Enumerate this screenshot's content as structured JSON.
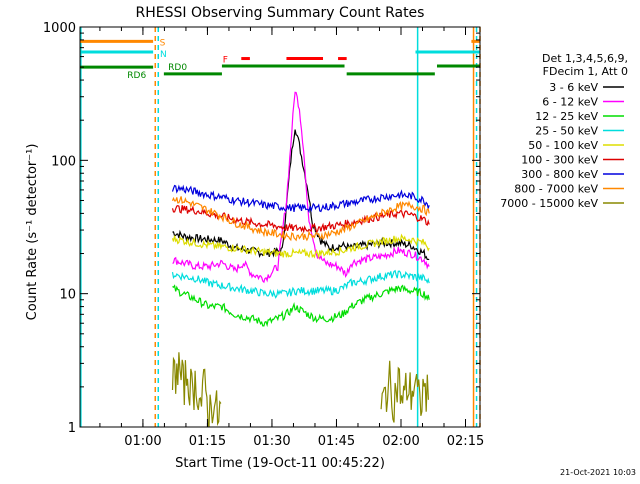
{
  "chart_data": {
    "type": "line",
    "title": "RHESSI Observing Summary Count Rates",
    "ylabel": "Count Rate (s⁻¹ detector⁻¹)",
    "xlabel": "Start Time (19-Oct-11 00:45:22)",
    "yscale": "log",
    "ylim": [
      1,
      1000
    ],
    "xlim_minutes": [
      0,
      93
    ],
    "yticks": [
      {
        "v": 1,
        "label": "1"
      },
      {
        "v": 10,
        "label": "10"
      },
      {
        "v": 100,
        "label": "100"
      },
      {
        "v": 1000,
        "label": "1000"
      }
    ],
    "xticks": [
      {
        "m": 14.63,
        "label": "01:00"
      },
      {
        "m": 29.63,
        "label": "01:15"
      },
      {
        "m": 44.63,
        "label": "01:30"
      },
      {
        "m": 59.63,
        "label": "01:45"
      },
      {
        "m": 74.63,
        "label": "02:00"
      },
      {
        "m": 89.63,
        "label": "02:15"
      }
    ],
    "legend": {
      "header": [
        "Det 1,3,4,5,6,9,",
        "FDecim 1, Att 0"
      ],
      "entries": [
        {
          "label": "3 - 6 keV",
          "color": "#000000"
        },
        {
          "label": "6 - 12 keV",
          "color": "#ff00ff"
        },
        {
          "label": "12 - 25 keV",
          "color": "#00dd00"
        },
        {
          "label": "25 - 50 keV",
          "color": "#00dddd"
        },
        {
          "label": "50 - 100 keV",
          "color": "#dddd00"
        },
        {
          "label": "100 - 300 keV",
          "color": "#dd0000"
        },
        {
          "label": "300 - 800 keV",
          "color": "#0000dd"
        },
        {
          "label": "800 - 7000 keV",
          "color": "#ff8800"
        },
        {
          "label": "7000 - 15000 keV",
          "color": "#888800"
        }
      ]
    },
    "flags": [
      {
        "label": "S",
        "color": "#ff8800",
        "level": 780,
        "segments": [
          [
            0,
            17
          ],
          [
            91,
            93
          ]
        ]
      },
      {
        "label": "N",
        "color": "#00dddd",
        "level": 650,
        "segments": [
          [
            0,
            17
          ],
          [
            78,
            93
          ]
        ]
      },
      {
        "label": "F",
        "color": "#ff0000",
        "level": 580,
        "segments": [
          [
            37.5,
            39.5
          ],
          [
            48,
            56.5
          ],
          [
            60,
            62
          ]
        ]
      },
      {
        "label": "RD0",
        "color": "#008800",
        "level": 510,
        "segments": [
          [
            33,
            61.5
          ],
          [
            83,
            93
          ]
        ]
      },
      {
        "label": "RD6",
        "color": "#008800",
        "level": 500,
        "segments": [
          [
            0,
            17
          ]
        ]
      },
      {
        "label": "",
        "color": "#008800",
        "level": 445,
        "segments": [
          [
            19.5,
            33
          ],
          [
            62,
            82.5
          ]
        ]
      }
    ],
    "event_lines": [
      {
        "m": 17.5,
        "color": "#ff8800",
        "dash": true
      },
      {
        "m": 18.2,
        "color": "#00dddd",
        "dash": true
      },
      {
        "m": 0.2,
        "color": "#00dddd",
        "dash": false
      },
      {
        "m": 78.5,
        "color": "#00dddd",
        "dash": false
      },
      {
        "m": 91.5,
        "color": "#ff8800",
        "dash": false
      },
      {
        "m": 92.2,
        "color": "#00dddd",
        "dash": true
      },
      {
        "m": 93,
        "color": "#ff8800",
        "dash": true
      }
    ],
    "series": [
      {
        "name": "3 - 6 keV",
        "color": "#000000",
        "points": [
          [
            21.5,
            29
          ],
          [
            24,
            27
          ],
          [
            27,
            26
          ],
          [
            33,
            25
          ],
          [
            36,
            22
          ],
          [
            40,
            21
          ],
          [
            43,
            20
          ],
          [
            47,
            21
          ],
          [
            49,
            100
          ],
          [
            50,
            180
          ],
          [
            51,
            130
          ],
          [
            53,
            60
          ],
          [
            54,
            35
          ],
          [
            56,
            25
          ],
          [
            58,
            22
          ],
          [
            61,
            23
          ],
          [
            63,
            22
          ],
          [
            66,
            23
          ],
          [
            70,
            24
          ],
          [
            74,
            24
          ],
          [
            77,
            23
          ],
          [
            80,
            20
          ],
          [
            81.2,
            18
          ]
        ]
      },
      {
        "name": "6 - 12 keV",
        "color": "#ff00ff",
        "points": [
          [
            21.5,
            18
          ],
          [
            24,
            17
          ],
          [
            27,
            16
          ],
          [
            30,
            16
          ],
          [
            33,
            17
          ],
          [
            36,
            15
          ],
          [
            38,
            17
          ],
          [
            40,
            14
          ],
          [
            43,
            13
          ],
          [
            46,
            16
          ],
          [
            48,
            50
          ],
          [
            50,
            340
          ],
          [
            51,
            250
          ],
          [
            52,
            120
          ],
          [
            53,
            40
          ],
          [
            55,
            20
          ],
          [
            57,
            17
          ],
          [
            60,
            16
          ],
          [
            62,
            14
          ],
          [
            63,
            17
          ],
          [
            66,
            18
          ],
          [
            70,
            19
          ],
          [
            74,
            21
          ],
          [
            77,
            20
          ],
          [
            80,
            18
          ],
          [
            81.2,
            16
          ]
        ]
      },
      {
        "name": "12 - 25 keV",
        "color": "#00dd00",
        "points": [
          [
            21.5,
            11
          ],
          [
            24,
            10
          ],
          [
            27,
            9
          ],
          [
            30,
            8
          ],
          [
            33,
            8
          ],
          [
            36,
            7
          ],
          [
            40,
            6.5
          ],
          [
            43,
            6
          ],
          [
            46,
            6.5
          ],
          [
            48,
            7
          ],
          [
            50,
            8
          ],
          [
            53,
            7
          ],
          [
            55,
            6.5
          ],
          [
            58,
            6.5
          ],
          [
            61,
            7
          ],
          [
            63,
            8
          ],
          [
            66,
            9
          ],
          [
            70,
            10
          ],
          [
            74,
            11
          ],
          [
            77,
            10.5
          ],
          [
            80,
            10
          ],
          [
            81.2,
            9
          ]
        ]
      },
      {
        "name": "25 - 50 keV",
        "color": "#00dddd",
        "points": [
          [
            21.5,
            14
          ],
          [
            24,
            13.5
          ],
          [
            27,
            13
          ],
          [
            30,
            12
          ],
          [
            33,
            11.5
          ],
          [
            36,
            11
          ],
          [
            40,
            10.5
          ],
          [
            43,
            10
          ],
          [
            46,
            10
          ],
          [
            48,
            10
          ],
          [
            50,
            10.5
          ],
          [
            53,
            10.5
          ],
          [
            56,
            10.5
          ],
          [
            59,
            10.5
          ],
          [
            61,
            11
          ],
          [
            63,
            12
          ],
          [
            66,
            12.5
          ],
          [
            70,
            13.5
          ],
          [
            74,
            14
          ],
          [
            77,
            13.5
          ],
          [
            80,
            13
          ],
          [
            81.2,
            12
          ]
        ]
      },
      {
        "name": "50 - 100 keV",
        "color": "#dddd00",
        "points": [
          [
            21.5,
            26
          ],
          [
            24,
            25
          ],
          [
            27,
            24
          ],
          [
            30,
            23
          ],
          [
            33,
            22.5
          ],
          [
            36,
            22
          ],
          [
            40,
            21
          ],
          [
            43,
            20.5
          ],
          [
            46,
            20
          ],
          [
            49,
            20
          ],
          [
            52,
            20
          ],
          [
            55,
            20
          ],
          [
            58,
            20.5
          ],
          [
            61,
            21
          ],
          [
            63,
            22
          ],
          [
            66,
            23
          ],
          [
            70,
            24.5
          ],
          [
            74,
            26
          ],
          [
            77,
            25.5
          ],
          [
            80,
            24
          ],
          [
            81.2,
            22
          ]
        ]
      },
      {
        "name": "100 - 300 keV",
        "color": "#dd0000",
        "points": [
          [
            21.5,
            44
          ],
          [
            24,
            43
          ],
          [
            27,
            42
          ],
          [
            30,
            40
          ],
          [
            33,
            38
          ],
          [
            36,
            36
          ],
          [
            40,
            34
          ],
          [
            43,
            33
          ],
          [
            46,
            32
          ],
          [
            49,
            31
          ],
          [
            52,
            31
          ],
          [
            55,
            31
          ],
          [
            58,
            32
          ],
          [
            61,
            33
          ],
          [
            63,
            34
          ],
          [
            66,
            36
          ],
          [
            70,
            38
          ],
          [
            74,
            40
          ],
          [
            77,
            39
          ],
          [
            80,
            36
          ],
          [
            81.2,
            33
          ]
        ]
      },
      {
        "name": "300 - 800 keV",
        "color": "#0000dd",
        "points": [
          [
            21.5,
            62
          ],
          [
            24,
            61
          ],
          [
            27,
            58
          ],
          [
            30,
            55
          ],
          [
            33,
            53
          ],
          [
            36,
            50
          ],
          [
            40,
            48
          ],
          [
            43,
            46
          ],
          [
            46,
            45
          ],
          [
            49,
            44
          ],
          [
            52,
            44
          ],
          [
            55,
            44
          ],
          [
            58,
            45
          ],
          [
            61,
            47
          ],
          [
            63,
            48
          ],
          [
            66,
            50
          ],
          [
            70,
            53
          ],
          [
            74,
            55
          ],
          [
            77,
            54
          ],
          [
            80,
            50
          ],
          [
            81.2,
            46
          ]
        ]
      },
      {
        "name": "800 - 7000 keV",
        "color": "#ff8800",
        "points": [
          [
            21.5,
            52
          ],
          [
            24,
            50
          ],
          [
            27,
            46
          ],
          [
            30,
            42
          ],
          [
            33,
            38
          ],
          [
            36,
            34
          ],
          [
            40,
            31
          ],
          [
            43,
            29
          ],
          [
            46,
            28
          ],
          [
            49,
            27
          ],
          [
            52,
            27
          ],
          [
            55,
            27
          ],
          [
            58,
            28
          ],
          [
            61,
            30
          ],
          [
            63,
            32
          ],
          [
            66,
            35
          ],
          [
            70,
            40
          ],
          [
            74,
            45
          ],
          [
            77,
            46
          ],
          [
            80,
            43
          ],
          [
            81.2,
            40
          ]
        ]
      },
      {
        "name": "7000 - 15000 keV",
        "color": "#888800",
        "points": [
          [
            21.5,
            2.3
          ],
          [
            23,
            2.8
          ],
          [
            24,
            2
          ],
          [
            25,
            2.5
          ],
          [
            26,
            1.8
          ],
          [
            27,
            2.2
          ],
          [
            28,
            1.5
          ],
          [
            29,
            2
          ],
          [
            30,
            1.3
          ],
          [
            31,
            1.6
          ],
          [
            32,
            1.2
          ],
          [
            33,
            1.4
          ],
          [
            70,
            1.3
          ],
          [
            71,
            1.8
          ],
          [
            72,
            2.1
          ],
          [
            73,
            1.6
          ],
          [
            74,
            2.3
          ],
          [
            75,
            1.5
          ],
          [
            76,
            2
          ],
          [
            77,
            1.8
          ],
          [
            78,
            2.2
          ],
          [
            79,
            1.4
          ],
          [
            80,
            2
          ],
          [
            81,
            1.6
          ]
        ]
      }
    ]
  },
  "footer": {
    "timestamp": "21-Oct-2021 10:03"
  }
}
